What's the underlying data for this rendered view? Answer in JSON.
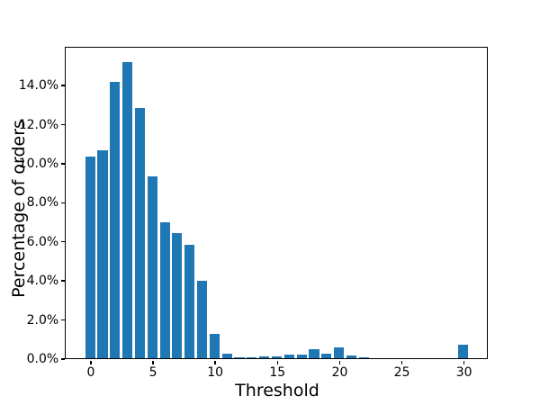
{
  "figure": {
    "background": "#ffffff",
    "text_color": "#000000",
    "spine_color": "#000000"
  },
  "chart_data": {
    "type": "bar",
    "title": "",
    "xlabel": "Threshold",
    "ylabel": "Percentage of orders",
    "bar_color": "#1f77b4",
    "bar_width": 0.8,
    "grid": false,
    "legend": "none",
    "xlim": [
      -1.95,
      31.9
    ],
    "ylim": [
      0,
      15.89
    ],
    "xticks": [
      0,
      5,
      10,
      15,
      20,
      25,
      30
    ],
    "xtick_labels": [
      "0",
      "5",
      "10",
      "15",
      "20",
      "25",
      "30"
    ],
    "yticks": [
      0,
      2,
      4,
      6,
      8,
      10,
      12,
      14
    ],
    "ytick_labels": [
      "0.0%",
      "2.0%",
      "4.0%",
      "6.0%",
      "8.0%",
      "10.0%",
      "12.0%",
      "14.0%"
    ],
    "x": [
      0,
      1,
      2,
      3,
      4,
      5,
      6,
      7,
      8,
      9,
      10,
      11,
      12,
      13,
      14,
      15,
      16,
      17,
      18,
      19,
      20,
      21,
      22,
      30
    ],
    "values": [
      10.35,
      10.65,
      14.15,
      15.15,
      12.8,
      9.3,
      6.95,
      6.4,
      5.8,
      3.97,
      1.27,
      0.25,
      0.07,
      0.06,
      0.1,
      0.1,
      0.2,
      0.2,
      0.45,
      0.22,
      0.55,
      0.16,
      0.05,
      0.7
    ]
  }
}
